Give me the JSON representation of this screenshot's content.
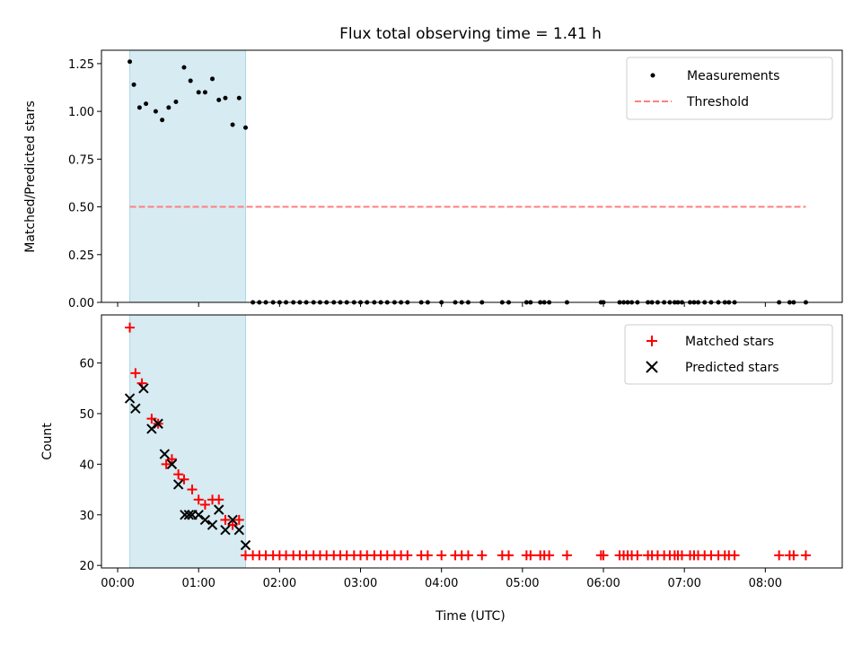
{
  "chart_data": [
    {
      "type": "scatter",
      "title": "Flux total observing time = 1.41 h",
      "xlabel": "",
      "ylabel": "Matched/Predicted stars",
      "ylim": [
        0,
        1.32
      ],
      "yticks": [
        "0.00",
        "0.25",
        "0.50",
        "0.75",
        "1.00",
        "1.25"
      ],
      "ytick_values": [
        0,
        0.25,
        0.5,
        0.75,
        1.0,
        1.25
      ],
      "xlim_hours": [
        -0.2,
        8.95
      ],
      "shaded_span_hours": [
        0.15,
        1.58
      ],
      "shade_color": "#add8e6",
      "legend": "top-right",
      "series": [
        {
          "name": "Measurements",
          "kind": "points",
          "color": "#000000",
          "x_hours": [
            0.15,
            0.2,
            0.27,
            0.35,
            0.47,
            0.55,
            0.63,
            0.72,
            0.82,
            0.9,
            1.0,
            1.08,
            1.17,
            1.25,
            1.33,
            1.42,
            1.5,
            1.58,
            1.67,
            1.75,
            1.83,
            1.92,
            2.0,
            2.08,
            2.17,
            2.25,
            2.33,
            2.42,
            2.5,
            2.58,
            2.67,
            2.75,
            2.83,
            2.92,
            3.0,
            3.08,
            3.17,
            3.25,
            3.33,
            3.42,
            3.5,
            3.58,
            3.75,
            3.83,
            4.0,
            4.17,
            4.25,
            4.33,
            4.5,
            4.75,
            4.83,
            5.05,
            5.1,
            5.22,
            5.27,
            5.33,
            5.55,
            5.97,
            6.0,
            6.2,
            6.25,
            6.3,
            6.35,
            6.42,
            6.55,
            6.6,
            6.67,
            6.75,
            6.82,
            6.88,
            6.92,
            6.97,
            7.07,
            7.12,
            7.17,
            7.25,
            7.33,
            7.42,
            7.5,
            7.55,
            7.62,
            8.17,
            8.3,
            8.35,
            8.5
          ],
          "y": [
            1.26,
            1.14,
            1.02,
            1.04,
            1.0,
            0.955,
            1.02,
            1.05,
            1.23,
            1.16,
            1.1,
            1.1,
            1.17,
            1.06,
            1.07,
            0.93,
            1.07,
            0.915,
            0,
            0,
            0,
            0,
            0,
            0,
            0,
            0,
            0,
            0,
            0,
            0,
            0,
            0,
            0,
            0,
            0,
            0,
            0,
            0,
            0,
            0,
            0,
            0,
            0,
            0,
            0,
            0,
            0,
            0,
            0,
            0,
            0,
            0,
            0,
            0,
            0,
            0,
            0,
            0,
            0,
            0,
            0,
            0,
            0,
            0,
            0,
            0,
            0,
            0,
            0,
            0,
            0,
            0,
            0,
            0,
            0,
            0,
            0,
            0,
            0,
            0,
            0,
            0,
            0,
            0,
            0
          ]
        },
        {
          "name": "Threshold",
          "kind": "dashed-line",
          "color": "#ff7f7f",
          "x_hours": [
            0.15,
            8.5
          ],
          "y": [
            0.5,
            0.5
          ]
        }
      ]
    },
    {
      "type": "scatter",
      "title": "",
      "xlabel": "Time (UTC)",
      "ylabel": "Count",
      "ylim": [
        19.5,
        69.5
      ],
      "yticks": [
        "20",
        "30",
        "40",
        "50",
        "60"
      ],
      "ytick_values": [
        20,
        30,
        40,
        50,
        60
      ],
      "xlim_hours": [
        -0.2,
        8.95
      ],
      "xticks": [
        "00:00",
        "01:00",
        "02:00",
        "03:00",
        "04:00",
        "05:00",
        "06:00",
        "07:00",
        "08:00"
      ],
      "xtick_values_hours": [
        0,
        1,
        2,
        3,
        4,
        5,
        6,
        7,
        8
      ],
      "shaded_span_hours": [
        0.15,
        1.58
      ],
      "shade_color": "#add8e6",
      "legend": "top-right",
      "series": [
        {
          "name": "Matched stars",
          "kind": "plus",
          "color": "#ff0000",
          "x_hours": [
            0.15,
            0.22,
            0.3,
            0.42,
            0.5,
            0.6,
            0.67,
            0.75,
            0.82,
            0.92,
            1.0,
            1.08,
            1.17,
            1.25,
            1.33,
            1.42,
            1.5,
            1.58,
            1.67,
            1.75,
            1.83,
            1.92,
            2.0,
            2.08,
            2.17,
            2.25,
            2.33,
            2.42,
            2.5,
            2.58,
            2.67,
            2.75,
            2.83,
            2.92,
            3.0,
            3.08,
            3.17,
            3.25,
            3.33,
            3.42,
            3.5,
            3.58,
            3.75,
            3.83,
            4.0,
            4.17,
            4.25,
            4.33,
            4.5,
            4.75,
            4.83,
            5.05,
            5.1,
            5.22,
            5.27,
            5.33,
            5.55,
            5.97,
            6.0,
            6.2,
            6.25,
            6.3,
            6.35,
            6.42,
            6.55,
            6.6,
            6.67,
            6.75,
            6.82,
            6.88,
            6.92,
            6.97,
            7.07,
            7.12,
            7.17,
            7.25,
            7.33,
            7.42,
            7.5,
            7.55,
            7.62,
            8.17,
            8.3,
            8.35,
            8.5
          ],
          "y": [
            67,
            58,
            56,
            49,
            48,
            40,
            41,
            38,
            37,
            35,
            33,
            32,
            33,
            33,
            29,
            28,
            29,
            22,
            22,
            22,
            22,
            22,
            22,
            22,
            22,
            22,
            22,
            22,
            22,
            22,
            22,
            22,
            22,
            22,
            22,
            22,
            22,
            22,
            22,
            22,
            22,
            22,
            22,
            22,
            22,
            22,
            22,
            22,
            22,
            22,
            22,
            22,
            22,
            22,
            22,
            22,
            22,
            22,
            22,
            22,
            22,
            22,
            22,
            22,
            22,
            22,
            22,
            22,
            22,
            22,
            22,
            22,
            22,
            22,
            22,
            22,
            22,
            22,
            22,
            22,
            22,
            22,
            22,
            22,
            22
          ]
        },
        {
          "name": "Predicted stars",
          "kind": "x",
          "color": "#000000",
          "x_hours": [
            0.15,
            0.22,
            0.32,
            0.42,
            0.5,
            0.58,
            0.67,
            0.75,
            0.83,
            0.88,
            0.92,
            1.0,
            1.08,
            1.17,
            1.25,
            1.33,
            1.42,
            1.5,
            1.58
          ],
          "y": [
            53,
            51,
            55,
            47,
            48,
            42,
            40,
            36,
            30,
            30,
            30,
            30,
            29,
            28,
            31,
            27,
            29,
            27,
            24
          ]
        }
      ]
    }
  ]
}
